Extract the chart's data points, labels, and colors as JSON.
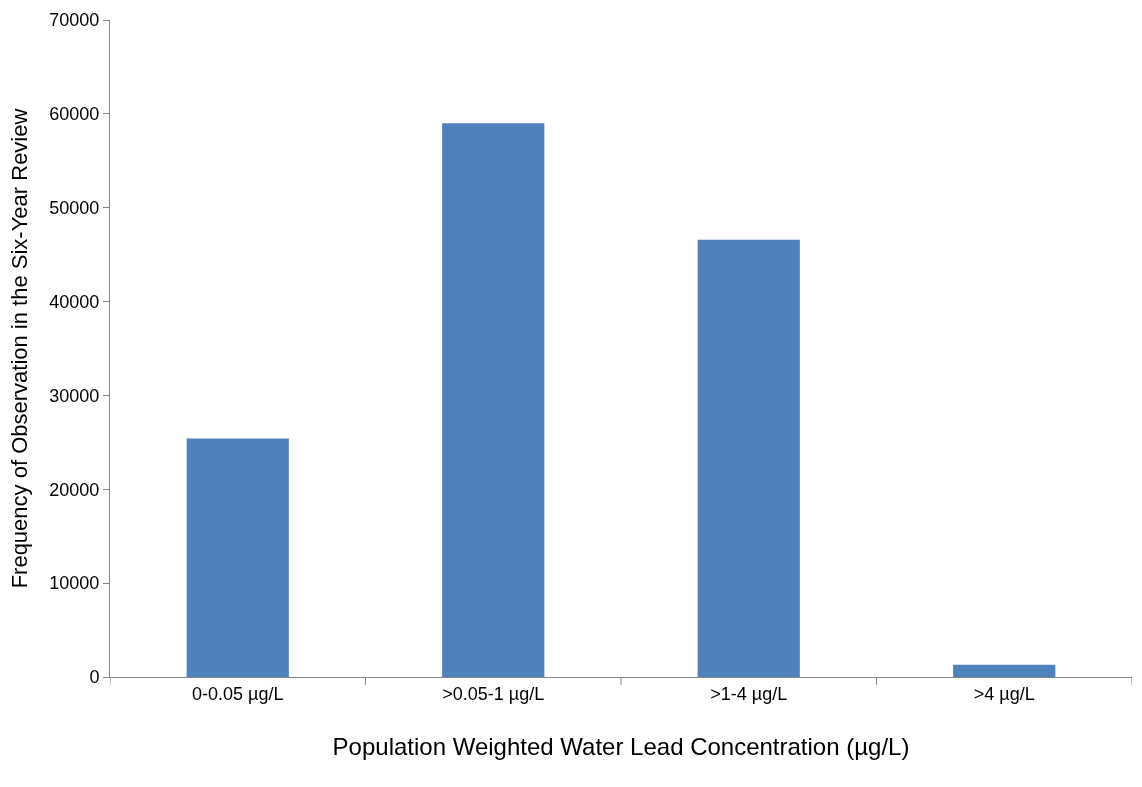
{
  "chart_data": {
    "type": "bar",
    "xlabel": "Population Weighted Water Lead Concentration (µg/L)",
    "ylabel": "Frequency of Observation in the Six-Year Review",
    "categories": [
      "0-0.05 µg/L",
      ">0.05-1 µg/L",
      ">1-4 µg/L",
      ">4 µg/L"
    ],
    "values": [
      25400,
      59000,
      46600,
      1300
    ],
    "color": "#4f81bd",
    "ylim": [
      0,
      70000
    ],
    "yticks": [
      0,
      10000,
      20000,
      30000,
      40000,
      50000,
      60000,
      70000
    ]
  }
}
